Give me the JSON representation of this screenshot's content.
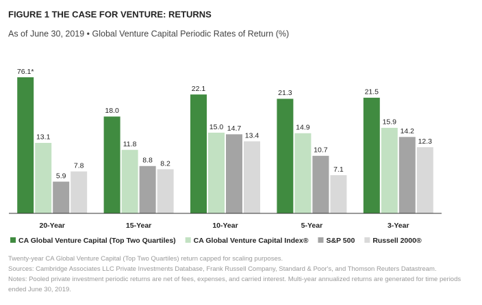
{
  "chart_data": {
    "type": "bar",
    "title": "FIGURE 1 THE CASE FOR VENTURE: RETURNS",
    "subtitle": "As of June 30, 2019 • Global Venture Capital Periodic Rates of Return (%)",
    "categories": [
      "20-Year",
      "15-Year",
      "10-Year",
      "5-Year",
      "3-Year"
    ],
    "series": [
      {
        "name": "CA Global Venture Capital (Top Two Quartiles)",
        "color": "#408b40",
        "values": [
          76.1,
          18.0,
          22.1,
          21.3,
          21.5
        ],
        "value_labels": [
          "76.1*",
          "18.0",
          "22.1",
          "21.3",
          "21.5"
        ]
      },
      {
        "name": "CA Global Venture Capital Index®",
        "color": "#c2e1c2",
        "values": [
          13.1,
          11.8,
          15.0,
          14.9,
          15.9
        ],
        "value_labels": [
          "13.1",
          "11.8",
          "15.0",
          "14.9",
          "15.9"
        ]
      },
      {
        "name": "S&P 500",
        "color": "#a4a4a4",
        "values": [
          5.9,
          8.8,
          14.7,
          10.7,
          14.2
        ],
        "value_labels": [
          "5.9",
          "8.8",
          "14.7",
          "10.7",
          "14.2"
        ]
      },
      {
        "name": "Russell 2000®",
        "color": "#d9d9d9",
        "values": [
          7.8,
          8.2,
          13.4,
          7.1,
          12.3
        ],
        "value_labels": [
          "7.8",
          "8.2",
          "13.4",
          "7.1",
          "12.3"
        ]
      }
    ],
    "ylim": [
      0,
      25.3
    ],
    "notes": [
      "Twenty-year CA Global Venture Capital (Top Two Quartiles) return capped for scaling purposes.",
      "Sources: Cambridge Associates LLC Private Investments Database, Frank Russell Company, Standard & Poor's, and Thomson Reuters Datastream.",
      "Notes: Pooled private investment periodic returns are net of fees, expenses, and carried interest. Multi-year annualized returns are generated for time periods ended June 30, 2019."
    ]
  }
}
